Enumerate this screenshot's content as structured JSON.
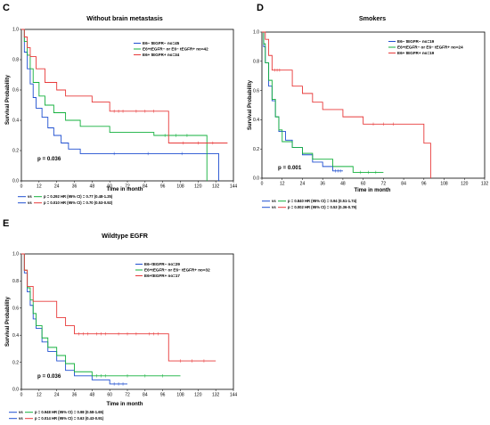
{
  "chart_data": [
    {
      "type": "line",
      "panel_label": "C",
      "title": "Without brain metastasis",
      "xlabel": "Time in month",
      "ylabel": "Survival Probability",
      "xlim": [
        0,
        144
      ],
      "ylim": [
        0,
        1.0
      ],
      "xticks": [
        0,
        12,
        24,
        36,
        48,
        60,
        72,
        84,
        96,
        108,
        120,
        132,
        144
      ],
      "yticks": [
        0.0,
        0.2,
        0.4,
        0.6,
        0.8,
        1.0
      ],
      "p_value": "p = 0.036",
      "stats": [
        {
          "vs": "vs",
          "text": "p = 0.292  HR (95% CI) = 0.77 (0.48-1.25)",
          "colors": [
            "#1f4fd0",
            "#13b03c"
          ]
        },
        {
          "vs": "vs",
          "text": "p = 0.010  HR (95% CI) = 0.70 (0.53-0.92)",
          "colors": [
            "#1f4fd0",
            "#e83a3a"
          ]
        }
      ],
      "series": [
        {
          "name": "E6− tEGFR− no=45",
          "color": "#1f4fd0",
          "x": [
            0,
            2,
            4,
            6,
            8,
            10,
            14,
            18,
            22,
            27,
            32,
            40,
            132,
            134
          ],
          "y": [
            1.0,
            0.85,
            0.74,
            0.64,
            0.55,
            0.48,
            0.42,
            0.35,
            0.3,
            0.25,
            0.21,
            0.18,
            0.18,
            0.0
          ]
        },
        {
          "name": "E6+tEGFR− or E6− tEGFR+ no=42",
          "color": "#13b03c",
          "x": [
            0,
            2,
            4,
            6,
            8,
            12,
            16,
            22,
            30,
            40,
            60,
            90,
            120,
            126
          ],
          "y": [
            1.0,
            0.92,
            0.83,
            0.74,
            0.65,
            0.56,
            0.5,
            0.45,
            0.4,
            0.36,
            0.32,
            0.3,
            0.3,
            0.0
          ]
        },
        {
          "name": "E6+ tEGFR+ no=34",
          "color": "#e83a3a",
          "x": [
            0,
            2,
            4,
            6,
            10,
            16,
            24,
            30,
            48,
            60,
            72,
            96,
            100,
            140
          ],
          "y": [
            1.0,
            0.95,
            0.88,
            0.82,
            0.74,
            0.65,
            0.6,
            0.56,
            0.52,
            0.46,
            0.46,
            0.46,
            0.25,
            0.25
          ]
        }
      ]
    },
    {
      "type": "line",
      "panel_label": "D",
      "title": "Smokers",
      "xlabel": "Time in month",
      "ylabel": "Survival Probability",
      "xlim": [
        0,
        132
      ],
      "ylim": [
        0,
        1.0
      ],
      "xticks": [
        0,
        12,
        24,
        36,
        48,
        60,
        72,
        84,
        96,
        108,
        120,
        132
      ],
      "yticks": [
        0.0,
        0.2,
        0.4,
        0.6,
        0.8,
        1.0
      ],
      "p_value": "p = 0.001",
      "stats": [
        {
          "vs": "vs",
          "text": "p = 0.840  HR (95% CI) = 0.94 (0.51-1.74)",
          "colors": [
            "#1f4fd0",
            "#13b03c"
          ]
        },
        {
          "vs": "vs",
          "text": "p = 0.002  HR (95% CI) = 0.53 (0.36-0.79)",
          "colors": [
            "#1f4fd0",
            "#e83a3a"
          ]
        }
      ],
      "series": [
        {
          "name": "E6− tEGFR− no=19",
          "color": "#1f4fd0",
          "x": [
            0,
            1,
            2,
            4,
            6,
            8,
            10,
            14,
            18,
            24,
            30,
            36,
            42,
            48
          ],
          "y": [
            1.0,
            0.9,
            0.79,
            0.63,
            0.53,
            0.42,
            0.32,
            0.26,
            0.21,
            0.16,
            0.11,
            0.08,
            0.05,
            0.05
          ]
        },
        {
          "name": "E6+tEGFR− or E6− tEGFR+ no=24",
          "color": "#13b03c",
          "x": [
            0,
            1,
            2,
            4,
            6,
            8,
            10,
            12,
            18,
            24,
            30,
            42,
            54,
            72
          ],
          "y": [
            1.0,
            0.92,
            0.79,
            0.67,
            0.54,
            0.42,
            0.33,
            0.25,
            0.21,
            0.17,
            0.13,
            0.08,
            0.04,
            0.04
          ]
        },
        {
          "name": "E6+ tEGFR+ no=19",
          "color": "#e83a3a",
          "x": [
            0,
            2,
            4,
            6,
            12,
            18,
            24,
            30,
            36,
            48,
            60,
            84,
            96,
            100
          ],
          "y": [
            1.0,
            0.95,
            0.84,
            0.74,
            0.74,
            0.63,
            0.58,
            0.52,
            0.47,
            0.42,
            0.37,
            0.37,
            0.24,
            0.0
          ]
        }
      ]
    },
    {
      "type": "line",
      "panel_label": "E",
      "title": "Wildtype EGFR",
      "xlabel": "Time in month",
      "ylabel": "Survival Probability",
      "xlim": [
        0,
        144
      ],
      "ylim": [
        0,
        1.0
      ],
      "xticks": [
        0,
        12,
        24,
        36,
        48,
        60,
        72,
        84,
        96,
        108,
        120,
        132,
        144
      ],
      "yticks": [
        0.0,
        0.2,
        0.4,
        0.6,
        0.8,
        1.0
      ],
      "p_value": "p = 0.036",
      "stats": [
        {
          "vs": "vs",
          "text": "p = 0.948  HR (95% CI) = 0.98 (0.58-1.65)",
          "colors": [
            "#1f4fd0",
            "#13b03c"
          ]
        },
        {
          "vs": "vs",
          "text": "p = 0.014  HR (95% CI) = 0.63 (0.43-0.91)",
          "colors": [
            "#1f4fd0",
            "#e83a3a"
          ]
        }
      ],
      "series": [
        {
          "name": "E6−tEGFR− no=29",
          "color": "#1f4fd0",
          "x": [
            0,
            2,
            4,
            6,
            8,
            10,
            14,
            18,
            24,
            30,
            36,
            48,
            60,
            72
          ],
          "y": [
            1.0,
            0.86,
            0.72,
            0.62,
            0.52,
            0.45,
            0.35,
            0.28,
            0.21,
            0.14,
            0.1,
            0.07,
            0.04,
            0.04
          ]
        },
        {
          "name": "E6+tEGFR− or E6− tEGFR+ no=32",
          "color": "#13b03c",
          "x": [
            0,
            2,
            4,
            6,
            8,
            10,
            14,
            18,
            24,
            30,
            36,
            48,
            60,
            108
          ],
          "y": [
            1.0,
            0.88,
            0.75,
            0.66,
            0.56,
            0.47,
            0.38,
            0.31,
            0.25,
            0.19,
            0.13,
            0.1,
            0.1,
            0.1
          ]
        },
        {
          "name": "E6+tEGFR+ no=17",
          "color": "#e83a3a",
          "x": [
            0,
            2,
            4,
            8,
            24,
            30,
            36,
            48,
            60,
            84,
            96,
            100,
            132
          ],
          "y": [
            1.0,
            0.88,
            0.76,
            0.65,
            0.53,
            0.47,
            0.41,
            0.41,
            0.41,
            0.41,
            0.41,
            0.21,
            0.21
          ]
        }
      ]
    }
  ]
}
